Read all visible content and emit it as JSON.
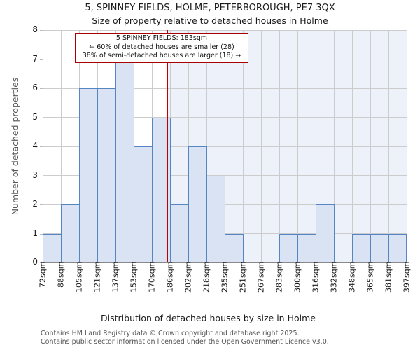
{
  "title": "5, SPINNEY FIELDS, HOLME, PETERBOROUGH, PE7 3QX",
  "subtitle": "Size of property relative to detached houses in Holme",
  "annotation": {
    "line1": "5 SPINNEY FIELDS: 183sqm",
    "line2": "← 60% of detached houses are smaller (28)",
    "line3": "38% of semi-detached houses are larger (18) →"
  },
  "footer": {
    "line1": "Contains HM Land Registry data © Crown copyright and database right 2025.",
    "line2": "Contains public sector information licensed under the Open Government Licence v3.0."
  },
  "chart_data": {
    "type": "bar",
    "title": "5, SPINNEY FIELDS, HOLME, PETERBOROUGH, PE7 3QX",
    "subtitle": "Size of property relative to detached houses in Holme",
    "xlabel": "Distribution of detached houses by size in Holme",
    "ylabel": "Number of detached properties",
    "categories": [
      "72sqm",
      "88sqm",
      "105sqm",
      "121sqm",
      "137sqm",
      "153sqm",
      "170sqm",
      "186sqm",
      "202sqm",
      "218sqm",
      "235sqm",
      "251sqm",
      "267sqm",
      "283sqm",
      "300sqm",
      "316sqm",
      "332sqm",
      "348sqm",
      "365sqm",
      "381sqm",
      "397sqm"
    ],
    "values": [
      1,
      2,
      6,
      6,
      7,
      4,
      5,
      2,
      4,
      3,
      1,
      0,
      0,
      1,
      1,
      2,
      0,
      1,
      1,
      1
    ],
    "xlim": [
      72,
      397
    ],
    "ylim": [
      0,
      8
    ],
    "yticks": [
      0,
      1,
      2,
      3,
      4,
      5,
      6,
      7,
      8
    ],
    "grid": true,
    "legend_position": "none",
    "marker": {
      "value": 183,
      "label": "183sqm",
      "shade_side": "right"
    },
    "colors": {
      "bar_fill": "#d9e3f3",
      "bar_edge": "#5585c2",
      "marker_line": "#c00000",
      "annotation_border": "#a80000",
      "shade_right": "#edf2fa",
      "grid": "#cccccc"
    }
  }
}
